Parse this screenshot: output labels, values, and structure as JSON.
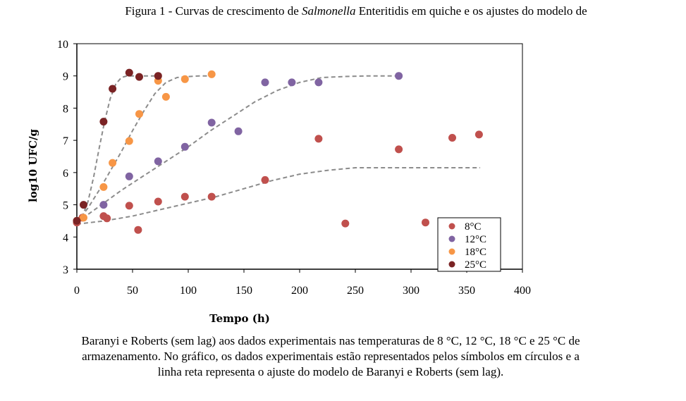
{
  "caption": {
    "top_prefix": "Figura 1 - Curvas de crescimento de ",
    "top_italic": "Salmonella",
    "top_suffix": " Enteritidis em quiche e os ajustes do modelo de",
    "bottom_lines": [
      "Baranyi e Roberts (sem lag) aos dados experimentais nas temperaturas de 8 °C, 12 °C, 18 °C e 25 °C de",
      "armazenamento. No gráfico, os dados experimentais estão representados pelos símbolos em círculos e a",
      "linha reta representa o ajuste do modelo de Baranyi e Roberts (sem lag)."
    ]
  },
  "chart_data": {
    "type": "scatter",
    "xlabel": "Tempo (h)",
    "ylabel": "log10 UFC/g",
    "xlim": [
      0,
      400
    ],
    "ylim": [
      3,
      10
    ],
    "xticks": [
      "0",
      "50",
      "100",
      "150",
      "200",
      "250",
      "300",
      "350",
      "400"
    ],
    "yticks": [
      "3",
      "4",
      "5",
      "6",
      "7",
      "8",
      "9",
      "10"
    ],
    "legend_position": "bottom-right",
    "series": [
      {
        "name": "8°C",
        "color": "#c0504d",
        "points": [
          [
            0,
            4.45
          ],
          [
            5,
            4.6
          ],
          [
            24,
            4.65
          ],
          [
            27,
            4.58
          ],
          [
            47,
            4.97
          ],
          [
            55,
            4.22
          ],
          [
            73,
            5.1
          ],
          [
            97,
            5.25
          ],
          [
            121,
            5.25
          ],
          [
            169,
            5.77
          ],
          [
            217,
            7.05
          ],
          [
            241,
            4.42
          ],
          [
            289,
            6.72
          ],
          [
            313,
            4.45
          ],
          [
            337,
            7.08
          ],
          [
            361,
            7.18
          ]
        ],
        "fit": [
          [
            0,
            4.4
          ],
          [
            25,
            4.5
          ],
          [
            50,
            4.65
          ],
          [
            75,
            4.85
          ],
          [
            100,
            5.05
          ],
          [
            125,
            5.25
          ],
          [
            150,
            5.5
          ],
          [
            175,
            5.75
          ],
          [
            200,
            5.95
          ],
          [
            225,
            6.07
          ],
          [
            250,
            6.15
          ],
          [
            280,
            6.15
          ],
          [
            310,
            6.15
          ],
          [
            340,
            6.15
          ],
          [
            362,
            6.15
          ]
        ]
      },
      {
        "name": "12°C",
        "color": "#8064a2",
        "points": [
          [
            0,
            4.5
          ],
          [
            24,
            5.0
          ],
          [
            47,
            5.88
          ],
          [
            73,
            6.35
          ],
          [
            97,
            6.8
          ],
          [
            121,
            7.55
          ],
          [
            145,
            7.28
          ],
          [
            169,
            8.8
          ],
          [
            193,
            8.8
          ],
          [
            217,
            8.8
          ],
          [
            289,
            9.0
          ]
        ],
        "fit": [
          [
            0,
            4.45
          ],
          [
            20,
            4.95
          ],
          [
            40,
            5.45
          ],
          [
            60,
            5.9
          ],
          [
            80,
            6.35
          ],
          [
            100,
            6.8
          ],
          [
            120,
            7.3
          ],
          [
            140,
            7.75
          ],
          [
            160,
            8.2
          ],
          [
            180,
            8.55
          ],
          [
            200,
            8.8
          ],
          [
            220,
            8.95
          ],
          [
            240,
            8.98
          ],
          [
            260,
            9.0
          ],
          [
            289,
            9.0
          ]
        ]
      },
      {
        "name": "18°C",
        "color": "#f79646",
        "points": [
          [
            0,
            4.5
          ],
          [
            6,
            4.6
          ],
          [
            24,
            5.55
          ],
          [
            32,
            6.3
          ],
          [
            47,
            6.98
          ],
          [
            56,
            7.82
          ],
          [
            73,
            8.85
          ],
          [
            80,
            8.35
          ],
          [
            97,
            8.9
          ],
          [
            121,
            9.05
          ]
        ],
        "fit": [
          [
            0,
            4.45
          ],
          [
            10,
            4.9
          ],
          [
            20,
            5.45
          ],
          [
            30,
            6.05
          ],
          [
            40,
            6.65
          ],
          [
            50,
            7.3
          ],
          [
            60,
            7.9
          ],
          [
            70,
            8.45
          ],
          [
            80,
            8.8
          ],
          [
            90,
            8.95
          ],
          [
            100,
            8.98
          ],
          [
            110,
            9.0
          ],
          [
            121,
            9.0
          ]
        ]
      },
      {
        "name": "25°C",
        "color": "#7a2324",
        "points": [
          [
            0,
            4.5
          ],
          [
            6,
            5.0
          ],
          [
            24,
            7.58
          ],
          [
            32,
            8.6
          ],
          [
            47,
            9.1
          ],
          [
            56,
            8.97
          ],
          [
            73,
            9.0
          ]
        ],
        "fit": [
          [
            0,
            4.45
          ],
          [
            5,
            4.65
          ],
          [
            10,
            5.1
          ],
          [
            15,
            5.85
          ],
          [
            20,
            6.75
          ],
          [
            25,
            7.6
          ],
          [
            30,
            8.3
          ],
          [
            35,
            8.75
          ],
          [
            40,
            8.95
          ],
          [
            45,
            9.0
          ],
          [
            55,
            9.0
          ],
          [
            65,
            9.0
          ],
          [
            75,
            9.0
          ]
        ]
      }
    ]
  }
}
